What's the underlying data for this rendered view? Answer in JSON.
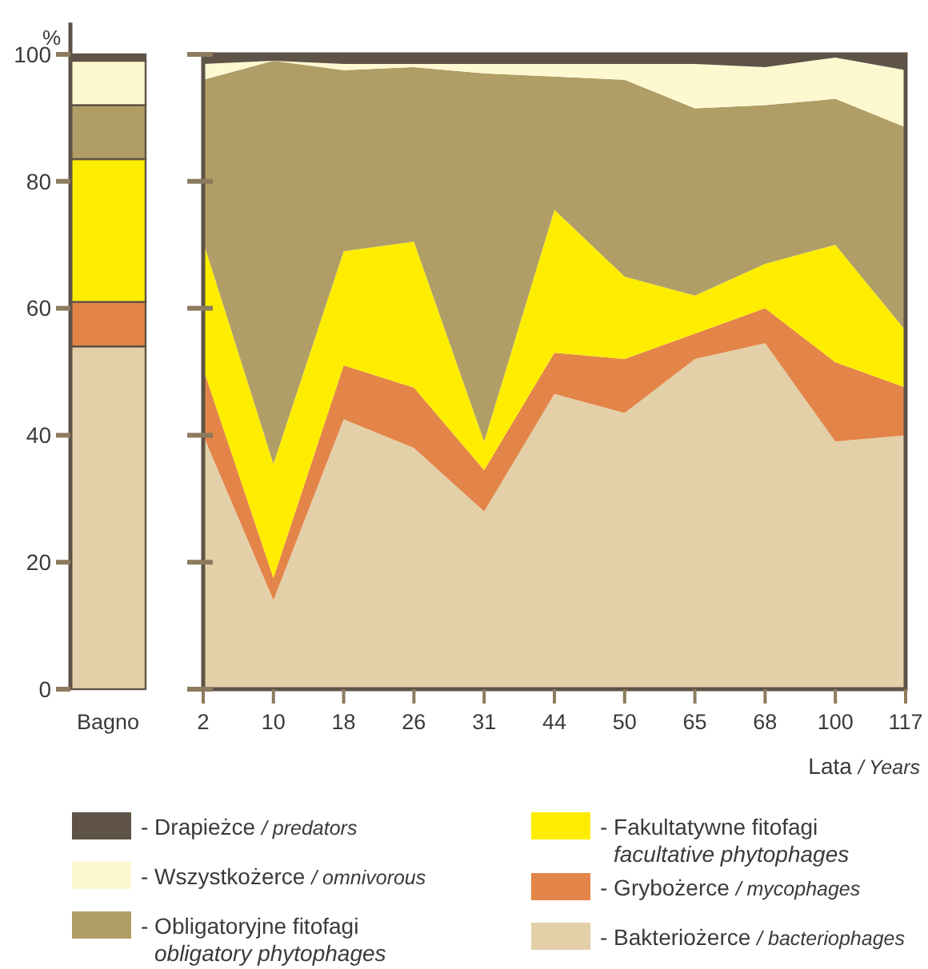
{
  "chart_data": [
    {
      "type": "bar",
      "stacked": true,
      "categories": [
        "Bagno"
      ],
      "ylabel": "%",
      "ylim": [
        0,
        105
      ],
      "yticks": [
        0,
        20,
        40,
        60,
        80,
        100
      ],
      "series": [
        {
          "color": "#e3d0a9",
          "values": [
            54
          ]
        },
        {
          "color": "#e38448",
          "values": [
            7
          ]
        },
        {
          "color": "#ffed00",
          "values": [
            22.5
          ]
        },
        {
          "color": "#b09e66",
          "values": [
            8.5
          ]
        },
        {
          "color": "#fdf8d0",
          "values": [
            7
          ]
        },
        {
          "color": "#5e5346",
          "values": [
            1
          ]
        }
      ]
    },
    {
      "type": "area",
      "stacked": true,
      "categories": [
        "2",
        "10",
        "18",
        "26",
        "31",
        "44",
        "50",
        "65",
        "68",
        "100",
        "117"
      ],
      "xlabel": "Lata / Years",
      "ylim": [
        0,
        100
      ],
      "yticks": [
        0,
        20,
        40,
        60,
        80,
        100
      ],
      "tick_labels": "x",
      "legend": "bottom",
      "series": [
        {
          "name": "- Bakteriożerce / bacteriophages",
          "color": "#e3d0a9",
          "values": [
            40,
            14,
            42.5,
            38,
            28,
            46.5,
            43.5,
            52,
            54.5,
            39,
            40
          ]
        },
        {
          "name": "- Grybożerce / mycophages",
          "color": "#e38448",
          "values": [
            10.5,
            3.5,
            8.5,
            9.5,
            6.5,
            6.5,
            8.5,
            4,
            5.5,
            12.5,
            7.5
          ]
        },
        {
          "name": "- Fakultatywne fitofagi\nfacultative phytophages",
          "color": "#ffed00",
          "values": [
            20,
            18,
            18,
            23,
            4.5,
            22.5,
            13,
            6,
            7,
            18.5,
            9
          ]
        },
        {
          "name": "- Obligatoryjne fitofagi\nobligatory phytophages",
          "color": "#b09e66",
          "values": [
            25.5,
            63.5,
            28.5,
            27.5,
            58,
            21,
            31,
            29.5,
            25,
            23,
            32
          ]
        },
        {
          "name": "- Wszystkożerce / omnivorous",
          "color": "#fdf8d0",
          "values": [
            2.5,
            0,
            1,
            0.5,
            1.5,
            2,
            2.5,
            7,
            6,
            6.5,
            9
          ]
        },
        {
          "name": "- Drapieżce / predators",
          "color": "#5e5346",
          "values": [
            1.5,
            1,
            1.5,
            1.5,
            1.5,
            1.5,
            1.5,
            1.5,
            2,
            0.5,
            2.5
          ]
        }
      ]
    }
  ]
}
